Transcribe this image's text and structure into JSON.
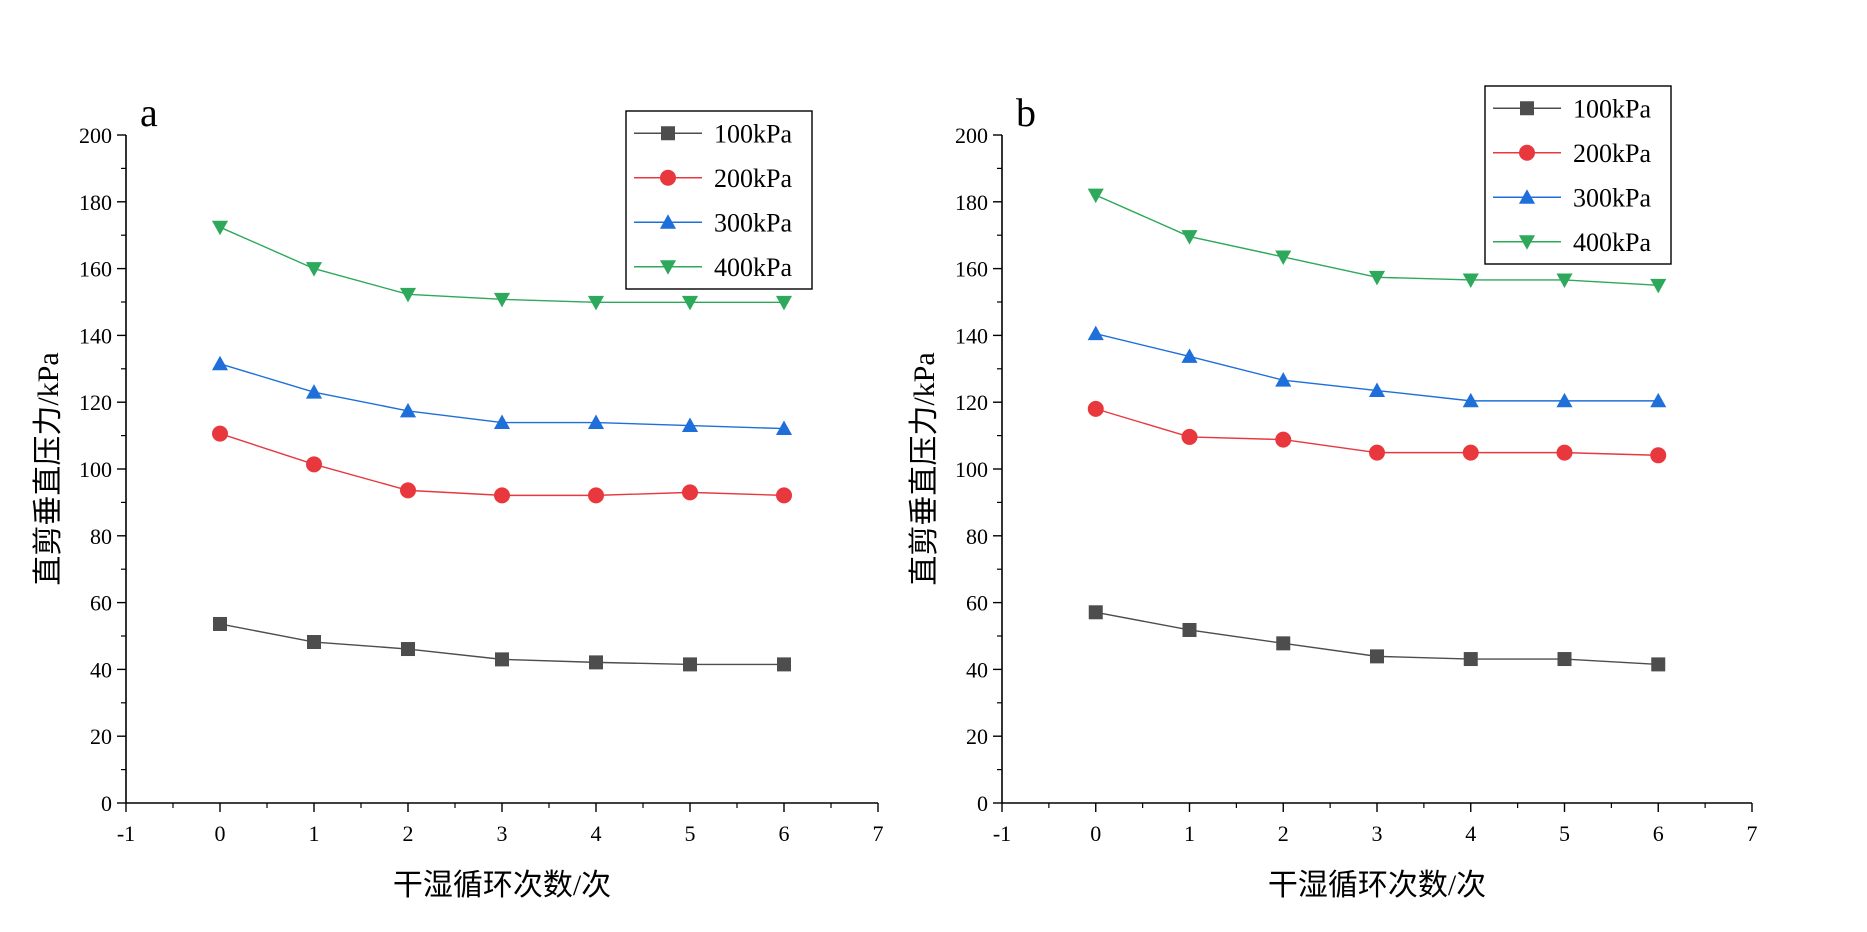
{
  "chart_data": [
    {
      "type": "line",
      "panel_label": "a",
      "xlabel": "干湿循环次数/次",
      "ylabel": "直剪垂直压力/kPa",
      "xlim": [
        -1,
        7
      ],
      "ylim": [
        0,
        200
      ],
      "xticks": [
        -1,
        0,
        1,
        2,
        3,
        4,
        5,
        6,
        7
      ],
      "yticks": [
        0,
        20,
        40,
        60,
        80,
        100,
        120,
        140,
        160,
        180,
        200
      ],
      "x": [
        0,
        1,
        2,
        3,
        4,
        5,
        6
      ],
      "legend_position": "top-right",
      "series": [
        {
          "name": "100kPa",
          "marker": "square",
          "color": "#4d4d4d",
          "values": [
            53.6,
            48.2,
            46.1,
            43.0,
            42.1,
            41.5,
            41.5
          ]
        },
        {
          "name": "200kPa",
          "marker": "circle",
          "color": "#e8383d",
          "values": [
            110.6,
            101.4,
            93.6,
            92.1,
            92.1,
            93.0,
            92.1
          ]
        },
        {
          "name": "300kPa",
          "marker": "triangle-up",
          "color": "#1e6fd9",
          "values": [
            131.5,
            123.0,
            117.4,
            113.9,
            113.9,
            113.0,
            112.1
          ]
        },
        {
          "name": "400kPa",
          "marker": "triangle-down",
          "color": "#2ea85a",
          "values": [
            172.4,
            160.0,
            152.3,
            150.8,
            149.9,
            149.9,
            149.9
          ]
        }
      ]
    },
    {
      "type": "line",
      "panel_label": "b",
      "xlabel": "干湿循环次数/次",
      "ylabel": "直剪垂直压力/kPa",
      "xlim": [
        -1,
        7
      ],
      "ylim": [
        0,
        200
      ],
      "xticks": [
        -1,
        0,
        1,
        2,
        3,
        4,
        5,
        6,
        7
      ],
      "yticks": [
        0,
        20,
        40,
        60,
        80,
        100,
        120,
        140,
        160,
        180,
        200
      ],
      "x": [
        0,
        1,
        2,
        3,
        4,
        5,
        6
      ],
      "legend_position": "top-right",
      "series": [
        {
          "name": "100kPa",
          "marker": "square",
          "color": "#4d4d4d",
          "values": [
            57.1,
            51.8,
            47.8,
            43.9,
            43.1,
            43.1,
            41.5
          ]
        },
        {
          "name": "200kPa",
          "marker": "circle",
          "color": "#e8383d",
          "values": [
            118.0,
            109.6,
            108.8,
            104.9,
            104.9,
            104.9,
            104.1
          ]
        },
        {
          "name": "300kPa",
          "marker": "triangle-up",
          "color": "#1e6fd9",
          "values": [
            140.5,
            133.7,
            126.6,
            123.5,
            120.4,
            120.4,
            120.4
          ]
        },
        {
          "name": "400kPa",
          "marker": "triangle-down",
          "color": "#2ea85a",
          "values": [
            182.0,
            169.6,
            163.5,
            157.4,
            156.6,
            156.6,
            155.0
          ]
        }
      ]
    }
  ]
}
